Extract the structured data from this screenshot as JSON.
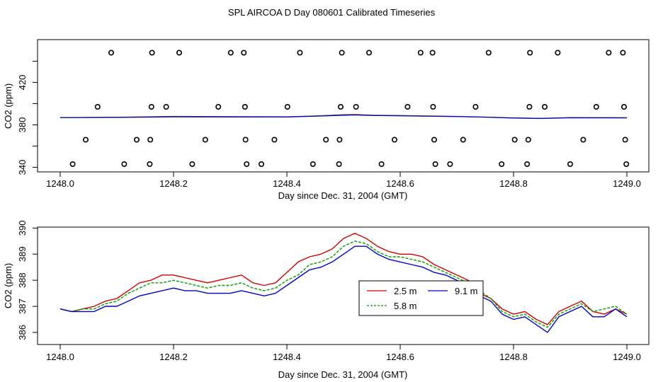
{
  "title": "SPL AIRCOA D  Day 080601  Calibrated Timeseries",
  "chart_data": [
    {
      "type": "scatter",
      "xlabel": "Day since Dec. 31, 2004 (GMT)",
      "ylabel": "CO2 (ppm)",
      "xlim": [
        1248.0,
        1249.0
      ],
      "ylim": [
        340,
        452
      ],
      "x_ticks": [
        "1248.0",
        "1248.2",
        "1248.4",
        "1248.6",
        "1248.8",
        "1249.0"
      ],
      "x_tick_values": [
        1248.0,
        1248.2,
        1248.4,
        1248.6,
        1248.8,
        1249.0
      ],
      "y_ticks": [
        "340",
        "380",
        "420"
      ],
      "y_tick_values": [
        340,
        380,
        420
      ],
      "y_minor_ticks": [
        340,
        360,
        380,
        400,
        420,
        440
      ],
      "grid": false,
      "line_series": [
        {
          "color": "#d00000",
          "x": [
            1248.0,
            1248.1,
            1248.2,
            1248.3,
            1248.4,
            1248.45,
            1248.5,
            1248.52,
            1248.55,
            1248.6,
            1248.7,
            1248.75,
            1248.8,
            1248.85,
            1248.9,
            1249.0
          ],
          "y": [
            386.9,
            387.2,
            388.0,
            387.8,
            387.6,
            388.5,
            389.6,
            389.8,
            389.2,
            388.9,
            388.0,
            387.3,
            386.6,
            386.2,
            386.9,
            386.8
          ]
        },
        {
          "color": "#00a000",
          "x": [
            1248.0,
            1248.1,
            1248.2,
            1248.3,
            1248.4,
            1248.45,
            1248.5,
            1248.52,
            1248.55,
            1248.6,
            1248.7,
            1248.75,
            1248.8,
            1248.85,
            1248.9,
            1249.0
          ],
          "y": [
            386.8,
            387.1,
            387.8,
            387.6,
            387.5,
            388.3,
            389.3,
            389.5,
            389.0,
            388.7,
            387.9,
            387.3,
            386.5,
            386.1,
            386.8,
            386.7
          ]
        },
        {
          "color": "#0000cc",
          "x": [
            1248.0,
            1248.1,
            1248.2,
            1248.3,
            1248.4,
            1248.45,
            1248.5,
            1248.52,
            1248.55,
            1248.6,
            1248.7,
            1248.75,
            1248.8,
            1248.85,
            1248.9,
            1249.0
          ],
          "y": [
            386.8,
            387.0,
            387.5,
            387.4,
            387.4,
            388.1,
            389.0,
            389.3,
            388.8,
            388.5,
            387.8,
            387.2,
            386.4,
            386.0,
            386.7,
            386.6
          ]
        }
      ],
      "points": [
        {
          "x": 1248.022,
          "y": 343
        },
        {
          "x": 1248.045,
          "y": 366
        },
        {
          "x": 1248.066,
          "y": 397
        },
        {
          "x": 1248.09,
          "y": 448
        },
        {
          "x": 1248.113,
          "y": 343
        },
        {
          "x": 1248.135,
          "y": 366
        },
        {
          "x": 1248.158,
          "y": 343
        },
        {
          "x": 1248.159,
          "y": 366
        },
        {
          "x": 1248.161,
          "y": 397
        },
        {
          "x": 1248.162,
          "y": 448
        },
        {
          "x": 1248.187,
          "y": 397
        },
        {
          "x": 1248.21,
          "y": 448
        },
        {
          "x": 1248.233,
          "y": 343
        },
        {
          "x": 1248.256,
          "y": 366
        },
        {
          "x": 1248.279,
          "y": 397
        },
        {
          "x": 1248.301,
          "y": 448
        },
        {
          "x": 1248.324,
          "y": 448
        },
        {
          "x": 1248.326,
          "y": 397
        },
        {
          "x": 1248.327,
          "y": 366
        },
        {
          "x": 1248.329,
          "y": 343
        },
        {
          "x": 1248.355,
          "y": 343
        },
        {
          "x": 1248.378,
          "y": 366
        },
        {
          "x": 1248.401,
          "y": 397
        },
        {
          "x": 1248.423,
          "y": 448
        },
        {
          "x": 1248.446,
          "y": 343
        },
        {
          "x": 1248.469,
          "y": 366
        },
        {
          "x": 1248.492,
          "y": 343
        },
        {
          "x": 1248.493,
          "y": 366
        },
        {
          "x": 1248.495,
          "y": 397
        },
        {
          "x": 1248.497,
          "y": 448
        },
        {
          "x": 1248.522,
          "y": 397
        },
        {
          "x": 1248.545,
          "y": 448
        },
        {
          "x": 1248.567,
          "y": 343
        },
        {
          "x": 1248.59,
          "y": 366
        },
        {
          "x": 1248.613,
          "y": 397
        },
        {
          "x": 1248.636,
          "y": 448
        },
        {
          "x": 1248.657,
          "y": 448
        },
        {
          "x": 1248.658,
          "y": 397
        },
        {
          "x": 1248.66,
          "y": 366
        },
        {
          "x": 1248.662,
          "y": 343
        },
        {
          "x": 1248.688,
          "y": 343
        },
        {
          "x": 1248.711,
          "y": 366
        },
        {
          "x": 1248.733,
          "y": 397
        },
        {
          "x": 1248.756,
          "y": 448
        },
        {
          "x": 1248.779,
          "y": 343
        },
        {
          "x": 1248.802,
          "y": 366
        },
        {
          "x": 1248.824,
          "y": 343
        },
        {
          "x": 1248.826,
          "y": 366
        },
        {
          "x": 1248.828,
          "y": 397
        },
        {
          "x": 1248.829,
          "y": 448
        },
        {
          "x": 1248.855,
          "y": 397
        },
        {
          "x": 1248.878,
          "y": 448
        },
        {
          "x": 1248.9,
          "y": 343
        },
        {
          "x": 1248.923,
          "y": 366
        },
        {
          "x": 1248.946,
          "y": 397
        },
        {
          "x": 1248.968,
          "y": 448
        },
        {
          "x": 1248.993,
          "y": 448
        },
        {
          "x": 1248.995,
          "y": 397
        },
        {
          "x": 1248.997,
          "y": 366
        },
        {
          "x": 1248.999,
          "y": 343
        }
      ]
    },
    {
      "type": "line",
      "xlabel": "Day since Dec. 31, 2004 (GMT)",
      "ylabel": "CO2 (ppm)",
      "xlim": [
        1248.0,
        1249.0
      ],
      "ylim": [
        385.7,
        390.2
      ],
      "x_ticks": [
        "1248.0",
        "1248.2",
        "1248.4",
        "1248.6",
        "1248.8",
        "1249.0"
      ],
      "x_tick_values": [
        1248.0,
        1248.2,
        1248.4,
        1248.6,
        1248.8,
        1249.0
      ],
      "y_ticks": [
        "386",
        "387",
        "388",
        "389",
        "390"
      ],
      "y_tick_values": [
        386,
        387,
        388,
        389,
        390
      ],
      "grid": false,
      "legend": {
        "position": "center-right",
        "entries": [
          {
            "label": "2.5 m",
            "color": "#d00000"
          },
          {
            "label": "5.8 m",
            "color": "#00a000"
          },
          {
            "label": "9.1 m",
            "color": "#0000cc"
          }
        ]
      },
      "x": [
        1248.0,
        1248.02,
        1248.04,
        1248.06,
        1248.08,
        1248.1,
        1248.12,
        1248.14,
        1248.16,
        1248.18,
        1248.2,
        1248.22,
        1248.24,
        1248.26,
        1248.28,
        1248.3,
        1248.32,
        1248.34,
        1248.36,
        1248.38,
        1248.4,
        1248.42,
        1248.44,
        1248.46,
        1248.48,
        1248.5,
        1248.52,
        1248.54,
        1248.56,
        1248.58,
        1248.6,
        1248.62,
        1248.64,
        1248.66,
        1248.68,
        1248.7,
        1248.72,
        1248.74,
        1248.76,
        1248.78,
        1248.8,
        1248.82,
        1248.84,
        1248.86,
        1248.88,
        1248.9,
        1248.92,
        1248.94,
        1248.96,
        1248.98,
        1249.0
      ],
      "series": [
        {
          "name": "2.5 m",
          "color": "#d00000",
          "values": [
            386.9,
            386.8,
            386.9,
            387.0,
            387.2,
            387.3,
            387.6,
            387.9,
            388.0,
            388.2,
            388.2,
            388.1,
            388.0,
            387.9,
            388.0,
            388.1,
            388.2,
            387.9,
            387.8,
            387.9,
            388.3,
            388.7,
            388.9,
            389.0,
            389.2,
            389.6,
            389.8,
            389.6,
            389.3,
            389.1,
            389.0,
            389.0,
            388.9,
            388.6,
            388.4,
            388.2,
            388.0,
            387.5,
            387.3,
            386.9,
            386.7,
            386.8,
            386.5,
            386.3,
            386.8,
            387.0,
            387.2,
            386.8,
            386.7,
            386.9,
            386.7
          ]
        },
        {
          "name": "5.8 m",
          "color": "#00a000",
          "values": [
            386.9,
            386.8,
            386.9,
            386.9,
            387.1,
            387.2,
            387.5,
            387.7,
            387.9,
            387.9,
            388.0,
            387.9,
            387.8,
            387.7,
            387.8,
            387.8,
            387.9,
            387.7,
            387.6,
            387.7,
            388.0,
            388.2,
            388.6,
            388.7,
            388.9,
            389.3,
            389.5,
            389.4,
            389.1,
            388.9,
            388.9,
            388.8,
            388.7,
            388.5,
            388.3,
            388.1,
            387.9,
            387.6,
            387.3,
            386.8,
            386.6,
            386.7,
            386.4,
            386.2,
            386.7,
            386.9,
            387.1,
            386.8,
            386.9,
            387.0,
            386.7
          ]
        },
        {
          "name": "9.1 m",
          "color": "#0000cc",
          "values": [
            386.9,
            386.8,
            386.8,
            386.8,
            387.0,
            387.0,
            387.2,
            387.4,
            387.5,
            387.6,
            387.7,
            387.6,
            387.6,
            387.5,
            387.5,
            387.5,
            387.6,
            387.5,
            387.4,
            387.5,
            387.8,
            388.1,
            388.4,
            388.5,
            388.7,
            389.0,
            389.3,
            389.3,
            389.0,
            388.8,
            388.7,
            388.6,
            388.5,
            388.3,
            388.2,
            388.0,
            387.8,
            387.4,
            387.2,
            386.7,
            386.5,
            386.6,
            386.3,
            386.0,
            386.6,
            386.8,
            387.0,
            386.6,
            386.6,
            386.9,
            386.6
          ]
        }
      ]
    }
  ]
}
